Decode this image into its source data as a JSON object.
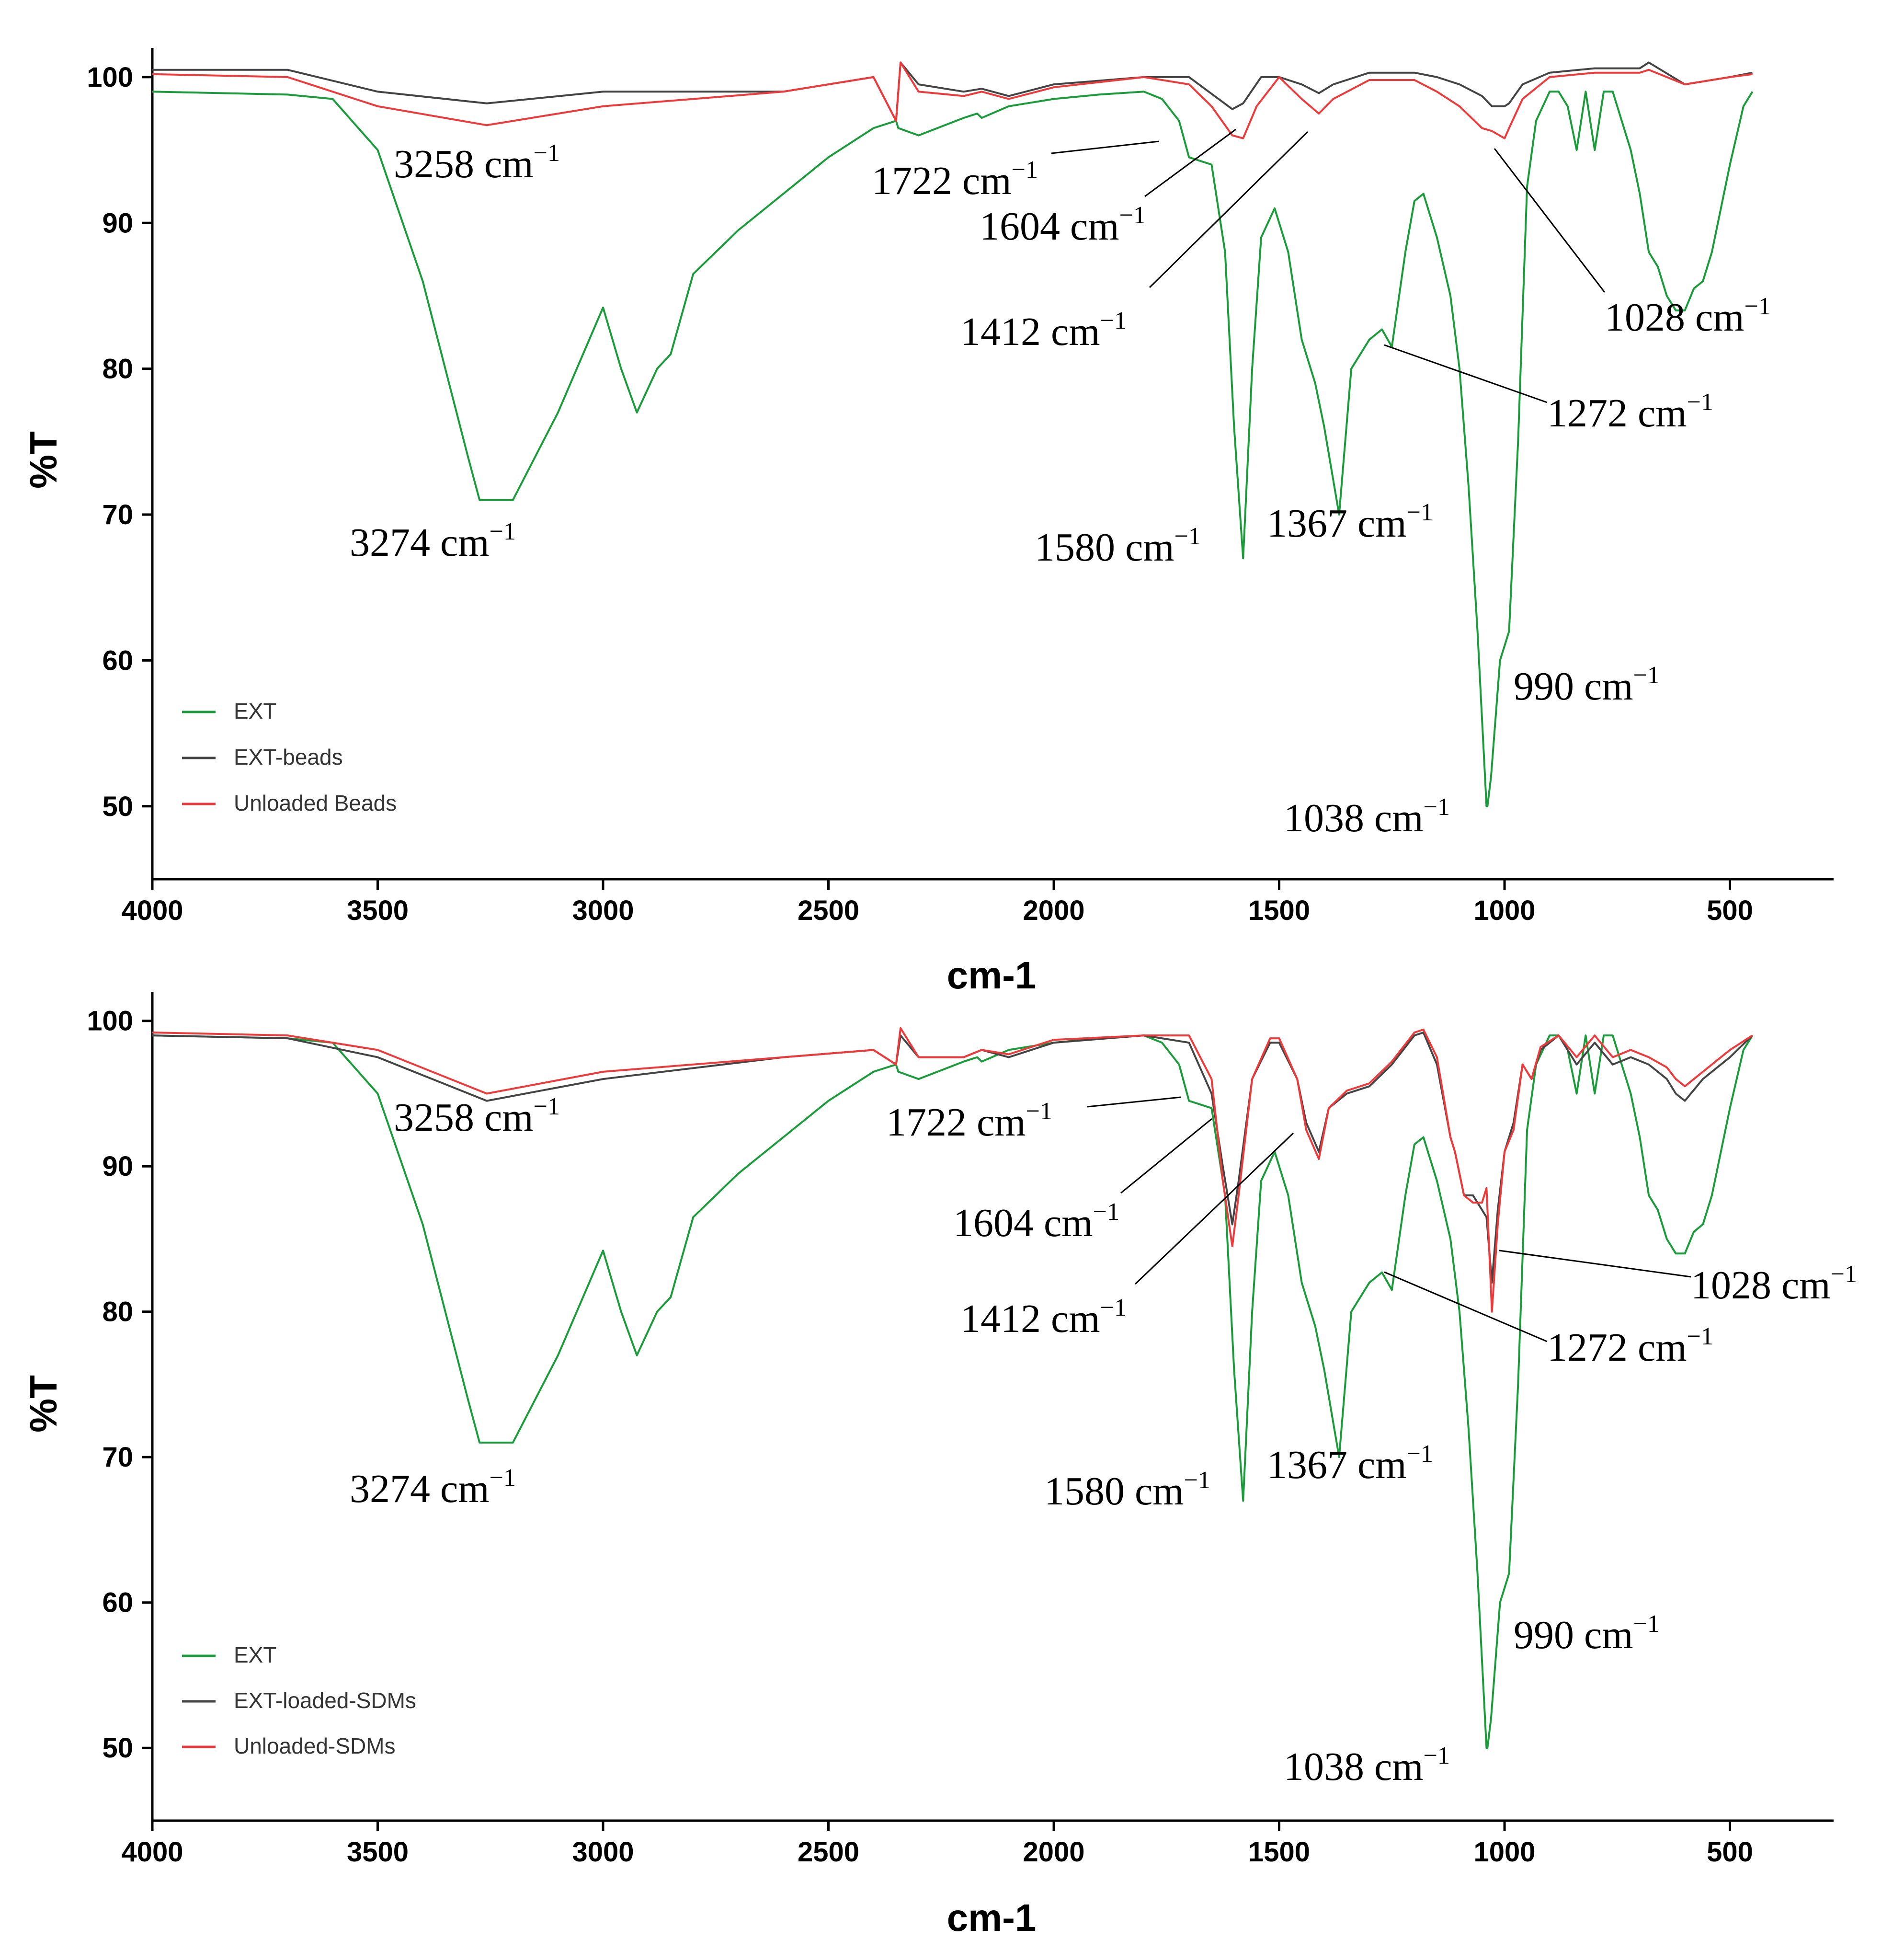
{
  "colors": {
    "EXT": "#1a9c3a",
    "EXT_beads": "#444444",
    "Unloaded": "#ee3a3a"
  },
  "chart_data": [
    {
      "type": "line",
      "xlabel": "cm-1",
      "ylabel": "%T",
      "xlim": [
        4000,
        270
      ],
      "ylim": [
        45,
        102
      ],
      "xticks": [
        4000,
        3500,
        3000,
        2500,
        2000,
        1500,
        1000,
        500
      ],
      "yticks": [
        50,
        60,
        70,
        80,
        90,
        100
      ],
      "legend": [
        "EXT",
        "EXT-beads",
        "Unloaded Beads"
      ],
      "series": [
        {
          "name": "EXT",
          "color_key": "EXT",
          "x": [
            4000,
            3700,
            3600,
            3500,
            3400,
            3300,
            3274,
            3200,
            3100,
            3000,
            2960,
            2925,
            2880,
            2850,
            2800,
            2700,
            2600,
            2500,
            2400,
            2350,
            2345,
            2300,
            2200,
            2170,
            2160,
            2100,
            2000,
            1900,
            1800,
            1760,
            1722,
            1700,
            1650,
            1620,
            1600,
            1580,
            1560,
            1540,
            1510,
            1480,
            1450,
            1420,
            1400,
            1367,
            1340,
            1300,
            1272,
            1250,
            1220,
            1200,
            1180,
            1150,
            1120,
            1100,
            1080,
            1060,
            1040,
            1038,
            1030,
            1010,
            1000,
            990,
            970,
            950,
            930,
            900,
            880,
            860,
            840,
            820,
            800,
            780,
            760,
            740,
            720,
            700,
            680,
            660,
            640,
            620,
            600,
            580,
            560,
            540,
            500,
            470,
            450
          ],
          "y": [
            99,
            98.8,
            98.5,
            95,
            86,
            74,
            71,
            71,
            77,
            84.2,
            80,
            77,
            80,
            81,
            86.5,
            89.5,
            92,
            94.5,
            96.5,
            97,
            96.5,
            96,
            97.2,
            97.5,
            97.2,
            98,
            98.5,
            98.8,
            99,
            98.5,
            97,
            94.5,
            94,
            88,
            76,
            67,
            80,
            89,
            91,
            88,
            82,
            79,
            76,
            70,
            80,
            82,
            82.7,
            81.5,
            88,
            91.5,
            92,
            89,
            85,
            80,
            72,
            62,
            50,
            50,
            52,
            60,
            61,
            62,
            75,
            92.5,
            97,
            99,
            99,
            98,
            95,
            99,
            95,
            99,
            99,
            97,
            95,
            92,
            88,
            87,
            85,
            84,
            84,
            85.5,
            86,
            88,
            94,
            98,
            99
          ]
        },
        {
          "name": "EXT-beads",
          "color_key": "EXT_beads",
          "x": [
            4000,
            3700,
            3500,
            3258,
            3000,
            2600,
            2400,
            2350,
            2340,
            2300,
            2200,
            2160,
            2100,
            2000,
            1800,
            1700,
            1604,
            1580,
            1540,
            1500,
            1450,
            1412,
            1380,
            1300,
            1200,
            1150,
            1100,
            1050,
            1028,
            1000,
            990,
            960,
            900,
            800,
            700,
            680,
            600,
            500,
            450
          ],
          "y": [
            100.5,
            100.5,
            99,
            98.2,
            99,
            99,
            100,
            97,
            101,
            99.5,
            99,
            99.2,
            98.7,
            99.5,
            100,
            100,
            97.8,
            98.2,
            100,
            100,
            99.5,
            98.9,
            99.5,
            100.3,
            100.3,
            100,
            99.5,
            98.7,
            98,
            98,
            98.2,
            99.5,
            100.3,
            100.6,
            100.6,
            101,
            99.5,
            100,
            100.3
          ]
        },
        {
          "name": "Unloaded Beads",
          "color_key": "Unloaded",
          "x": [
            4000,
            3700,
            3500,
            3258,
            3000,
            2600,
            2400,
            2350,
            2340,
            2300,
            2200,
            2160,
            2100,
            2000,
            1800,
            1700,
            1650,
            1604,
            1580,
            1550,
            1500,
            1450,
            1412,
            1380,
            1300,
            1200,
            1150,
            1100,
            1050,
            1028,
            1000,
            990,
            960,
            900,
            800,
            700,
            680,
            600,
            500,
            450
          ],
          "y": [
            100.2,
            100,
            98,
            96.7,
            98,
            99,
            100,
            97,
            101,
            99,
            98.7,
            99,
            98.5,
            99.3,
            100,
            99.5,
            98,
            96,
            95.8,
            98,
            100,
            98.5,
            97.5,
            98.5,
            99.8,
            99.8,
            99,
            98,
            96.5,
            96.3,
            95.8,
            96.5,
            98.5,
            100,
            100.3,
            100.3,
            100.5,
            99.5,
            100,
            100.2
          ]
        }
      ],
      "annotations": [
        {
          "text": "3258 cm",
          "sup": "−1"
        },
        {
          "text": "3274 cm",
          "sup": "−1"
        },
        {
          "text": "1722 cm",
          "sup": "−1"
        },
        {
          "text": "1604 cm",
          "sup": "−1"
        },
        {
          "text": "1412 cm",
          "sup": "−1"
        },
        {
          "text": "1580 cm",
          "sup": "−1"
        },
        {
          "text": "1367 cm",
          "sup": "−1"
        },
        {
          "text": "1272 cm",
          "sup": "−1"
        },
        {
          "text": "1028 cm",
          "sup": "−1"
        },
        {
          "text": "990 cm",
          "sup": "−1"
        },
        {
          "text": "1038 cm",
          "sup": "−1"
        }
      ]
    },
    {
      "type": "line",
      "xlabel": "cm-1",
      "ylabel": "%T",
      "xlim": [
        4000,
        270
      ],
      "ylim": [
        45,
        102
      ],
      "xticks": [
        4000,
        3500,
        3000,
        2500,
        2000,
        1500,
        1000,
        500
      ],
      "yticks": [
        50,
        60,
        70,
        80,
        90,
        100
      ],
      "legend": [
        "EXT",
        "EXT-loaded-SDMs",
        "Unloaded-SDMs"
      ],
      "series": [
        {
          "name": "EXT",
          "color_key": "EXT",
          "x": [
            4000,
            3700,
            3600,
            3500,
            3400,
            3300,
            3274,
            3200,
            3100,
            3000,
            2960,
            2925,
            2880,
            2850,
            2800,
            2700,
            2600,
            2500,
            2400,
            2350,
            2345,
            2300,
            2200,
            2170,
            2160,
            2100,
            2000,
            1900,
            1800,
            1760,
            1722,
            1700,
            1650,
            1620,
            1600,
            1580,
            1560,
            1540,
            1510,
            1480,
            1450,
            1420,
            1400,
            1367,
            1340,
            1300,
            1272,
            1250,
            1220,
            1200,
            1180,
            1150,
            1120,
            1100,
            1080,
            1060,
            1040,
            1038,
            1030,
            1010,
            1000,
            990,
            970,
            950,
            930,
            900,
            880,
            860,
            840,
            820,
            800,
            780,
            760,
            740,
            720,
            700,
            680,
            660,
            640,
            620,
            600,
            580,
            560,
            540,
            500,
            470,
            450
          ],
          "y": [
            99,
            98.8,
            98.5,
            95,
            86,
            74,
            71,
            71,
            77,
            84.2,
            80,
            77,
            80,
            81,
            86.5,
            89.5,
            92,
            94.5,
            96.5,
            97,
            96.5,
            96,
            97.2,
            97.5,
            97.2,
            98,
            98.5,
            98.8,
            99,
            98.5,
            97,
            94.5,
            94,
            88,
            76,
            67,
            80,
            89,
            91,
            88,
            82,
            79,
            76,
            70,
            80,
            82,
            82.7,
            81.5,
            88,
            91.5,
            92,
            89,
            85,
            80,
            72,
            62,
            50,
            50,
            52,
            60,
            61,
            62,
            75,
            92.5,
            97,
            99,
            99,
            98,
            95,
            99,
            95,
            99,
            99,
            97,
            95,
            92,
            88,
            87,
            85,
            84,
            84,
            85.5,
            86,
            88,
            94,
            98,
            99
          ]
        },
        {
          "name": "EXT-loaded-SDMs",
          "color_key": "EXT_beads",
          "x": [
            4000,
            3700,
            3500,
            3258,
            3000,
            2600,
            2400,
            2350,
            2340,
            2300,
            2200,
            2160,
            2100,
            2000,
            1800,
            1700,
            1650,
            1625,
            1604,
            1590,
            1560,
            1520,
            1500,
            1460,
            1440,
            1412,
            1390,
            1350,
            1300,
            1250,
            1200,
            1180,
            1150,
            1120,
            1110,
            1090,
            1070,
            1050,
            1040,
            1028,
            1015,
            1000,
            980,
            960,
            940,
            920,
            880,
            840,
            800,
            760,
            720,
            680,
            640,
            620,
            600,
            560,
            500,
            450
          ],
          "y": [
            99,
            98.8,
            97.5,
            94.5,
            96,
            97.5,
            98,
            97,
            99,
            97.5,
            97.5,
            98,
            97.5,
            98.5,
            99,
            98.5,
            95,
            90,
            86,
            89,
            96,
            98.5,
            98.5,
            96,
            93,
            91,
            94,
            95,
            95.5,
            97,
            99,
            99.2,
            97,
            92,
            91,
            88,
            88,
            87,
            86.5,
            82,
            87,
            91,
            93,
            97,
            96,
            98,
            99,
            97,
            98.5,
            97,
            97.5,
            97,
            96,
            95,
            94.5,
            96,
            97.5,
            99
          ]
        },
        {
          "name": "Unloaded-SDMs",
          "color_key": "Unloaded",
          "x": [
            4000,
            3700,
            3500,
            3258,
            3000,
            2600,
            2400,
            2350,
            2340,
            2300,
            2200,
            2160,
            2100,
            2000,
            1800,
            1700,
            1650,
            1625,
            1604,
            1590,
            1560,
            1520,
            1500,
            1460,
            1440,
            1412,
            1390,
            1350,
            1300,
            1250,
            1200,
            1180,
            1150,
            1120,
            1110,
            1090,
            1070,
            1050,
            1040,
            1028,
            1015,
            1000,
            980,
            960,
            940,
            920,
            880,
            840,
            800,
            760,
            720,
            680,
            640,
            620,
            600,
            560,
            500,
            450
          ],
          "y": [
            99.2,
            99,
            98,
            95,
            96.5,
            97.5,
            98,
            97,
            99.5,
            97.5,
            97.5,
            98,
            97.7,
            98.7,
            99,
            99,
            96,
            89,
            84.5,
            88,
            96,
            98.8,
            98.8,
            96,
            92.5,
            90.5,
            94,
            95.2,
            95.7,
            97.2,
            99.2,
            99.4,
            97.5,
            92,
            91,
            88,
            87.5,
            87.5,
            88.5,
            80,
            86,
            91,
            92.5,
            97,
            96,
            98.2,
            99,
            97.5,
            99,
            97.5,
            98,
            97.5,
            96.8,
            96,
            95.5,
            96.5,
            98,
            99
          ]
        }
      ],
      "annotations": [
        {
          "text": "3258 cm",
          "sup": "−1"
        },
        {
          "text": "3274 cm",
          "sup": "−1"
        },
        {
          "text": "1722 cm",
          "sup": "−1"
        },
        {
          "text": "1604 cm",
          "sup": "−1"
        },
        {
          "text": "1412 cm",
          "sup": "−1"
        },
        {
          "text": "1580 cm",
          "sup": "−1"
        },
        {
          "text": "1367 cm",
          "sup": "−1"
        },
        {
          "text": "1272 cm",
          "sup": "−1"
        },
        {
          "text": "1028 cm",
          "sup": "−1"
        },
        {
          "text": "990 cm",
          "sup": "−1"
        },
        {
          "text": "1038 cm",
          "sup": "−1"
        }
      ]
    }
  ]
}
